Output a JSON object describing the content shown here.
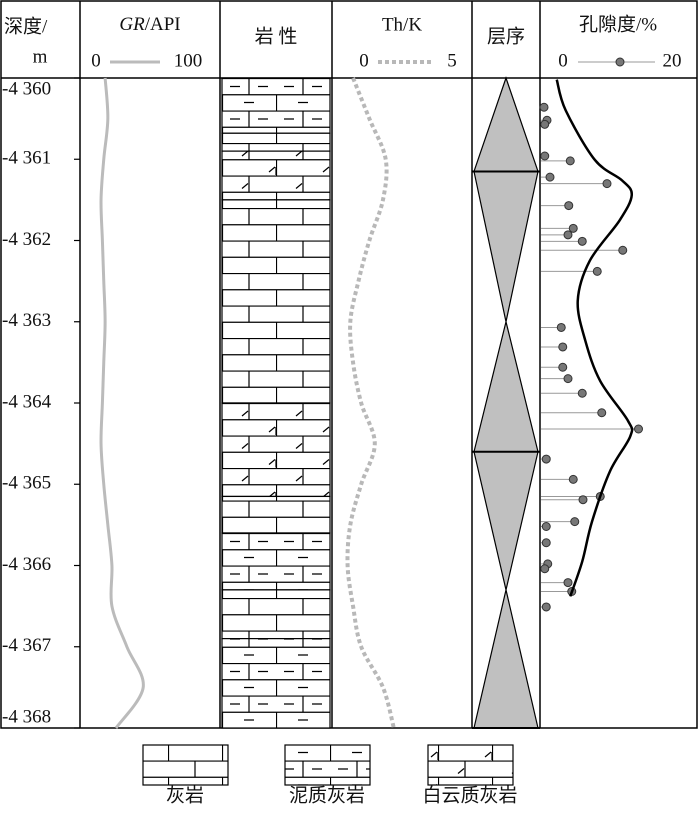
{
  "depth": {
    "header": [
      "深度/",
      "m"
    ],
    "ylim": [
      -4360,
      -4368
    ],
    "yticks": [
      {
        "value": -4360,
        "label": "-4 360"
      },
      {
        "value": -4361,
        "label": "-4 361"
      },
      {
        "value": -4362,
        "label": "-4 362"
      },
      {
        "value": -4363,
        "label": "-4 363"
      },
      {
        "value": -4364,
        "label": "-4 364"
      },
      {
        "value": -4365,
        "label": "-4 365"
      },
      {
        "value": -4366,
        "label": "-4 366"
      },
      {
        "value": -4367,
        "label": "-4 367"
      },
      {
        "value": -4368,
        "label": "-4 368"
      }
    ]
  },
  "gr": {
    "title_italic": "GR",
    "title_rest": "/API",
    "xlim": [
      0,
      100
    ],
    "xticks": [
      0,
      100
    ],
    "color": "#bbbbbb",
    "depth": [
      -4360,
      -4360.5,
      -4361,
      -4361.5,
      -4362,
      -4362.5,
      -4363,
      -4363.5,
      -4364,
      -4364.5,
      -4365,
      -4365.5,
      -4366,
      -4366.5,
      -4367,
      -4367.5,
      -4368
    ],
    "values": [
      17,
      19,
      16,
      14,
      15,
      16,
      17,
      16,
      15,
      14,
      16,
      19,
      22,
      22,
      33,
      45,
      25
    ]
  },
  "lithology": {
    "title": "岩 性",
    "legend": [
      "灰岩",
      "泥质灰岩",
      "白云质灰岩"
    ],
    "layers": [
      {
        "top": -4360,
        "bottom": -4360.68,
        "rock": "泥质灰岩"
      },
      {
        "top": -4360.68,
        "bottom": -4360.9,
        "rock": "灰岩"
      },
      {
        "top": -4360.9,
        "bottom": -4361.5,
        "rock": "白云质灰岩"
      },
      {
        "top": -4361.5,
        "bottom": -4364.0,
        "rock": "灰岩"
      },
      {
        "top": -4364.0,
        "bottom": -4365.15,
        "rock": "白云质灰岩"
      },
      {
        "top": -4365.15,
        "bottom": -4365.6,
        "rock": "灰岩"
      },
      {
        "top": -4365.6,
        "bottom": -4366.3,
        "rock": "泥质灰岩"
      },
      {
        "top": -4366.3,
        "bottom": -4366.9,
        "rock": "灰岩"
      },
      {
        "top": -4366.9,
        "bottom": -4368,
        "rock": "泥质灰岩"
      }
    ]
  },
  "thk": {
    "title": "Th/K",
    "xlim": [
      0,
      5
    ],
    "xticks": [
      0,
      5
    ],
    "color": "#b8b8b8",
    "depth": [
      -4360,
      -4360.5,
      -4361,
      -4361.5,
      -4362,
      -4362.5,
      -4363,
      -4363.5,
      -4364,
      -4364.5,
      -4365,
      -4365.5,
      -4366,
      -4366.5,
      -4367,
      -4367.5,
      -4368
    ],
    "values": [
      0.7,
      1.3,
      1.9,
      1.8,
      1.3,
      0.9,
      0.6,
      0.7,
      1.0,
      1.5,
      1.0,
      0.6,
      0.5,
      0.7,
      1.0,
      1.8,
      2.2
    ]
  },
  "sequence": {
    "title": "层序",
    "apex": [
      -4360,
      -4363,
      -4366.3
    ],
    "base": [
      -4361.15,
      -4364.6,
      -4368
    ],
    "color": "#c0c0c0"
  },
  "porosity": {
    "title": "孔隙度/%",
    "xlim": [
      0,
      20
    ],
    "xticks": [
      0,
      20
    ],
    "color": "#777777",
    "points": {
      "depth": [
        -4360.36,
        -4360.52,
        -4360.57,
        -4360.96,
        -4361.02,
        -4361.22,
        -4361.3,
        -4361.57,
        -4361.85,
        -4361.93,
        -4362.01,
        -4362.12,
        -4362.38,
        -4363.07,
        -4363.31,
        -4363.56,
        -4363.7,
        -4363.88,
        -4364.12,
        -4364.32,
        -4364.69,
        -4364.94,
        -4365.15,
        -4365.19,
        -4365.46,
        -4365.52,
        -4365.72,
        -4365.98,
        -4366.04,
        -4366.21,
        -4366.32,
        -4366.51
      ],
      "values": [
        0.4,
        0.8,
        0.5,
        0.5,
        3.9,
        1.2,
        8.8,
        3.7,
        4.3,
        3.6,
        5.5,
        10.9,
        7.5,
        2.7,
        2.9,
        2.9,
        3.6,
        5.5,
        8.1,
        13.0,
        0.7,
        4.3,
        7.9,
        5.6,
        4.5,
        0.7,
        0.7,
        0.9,
        0.5,
        3.6,
        4.1,
        0.7
      ]
    },
    "trend": {
      "depth": [
        -4360.02,
        -4360.4,
        -4361.01,
        -4361.26,
        -4361.44,
        -4361.75,
        -4362.25,
        -4362.74,
        -4363.23,
        -4363.73,
        -4364.22,
        -4364.41,
        -4364.84,
        -4365.46,
        -4365.95,
        -4366.38
      ],
      "values": [
        2.1,
        3.3,
        7.2,
        10.8,
        12.1,
        10.5,
        6.5,
        4.9,
        5.9,
        7.9,
        11.6,
        11.9,
        9.2,
        6.8,
        5.5,
        3.9
      ]
    }
  }
}
